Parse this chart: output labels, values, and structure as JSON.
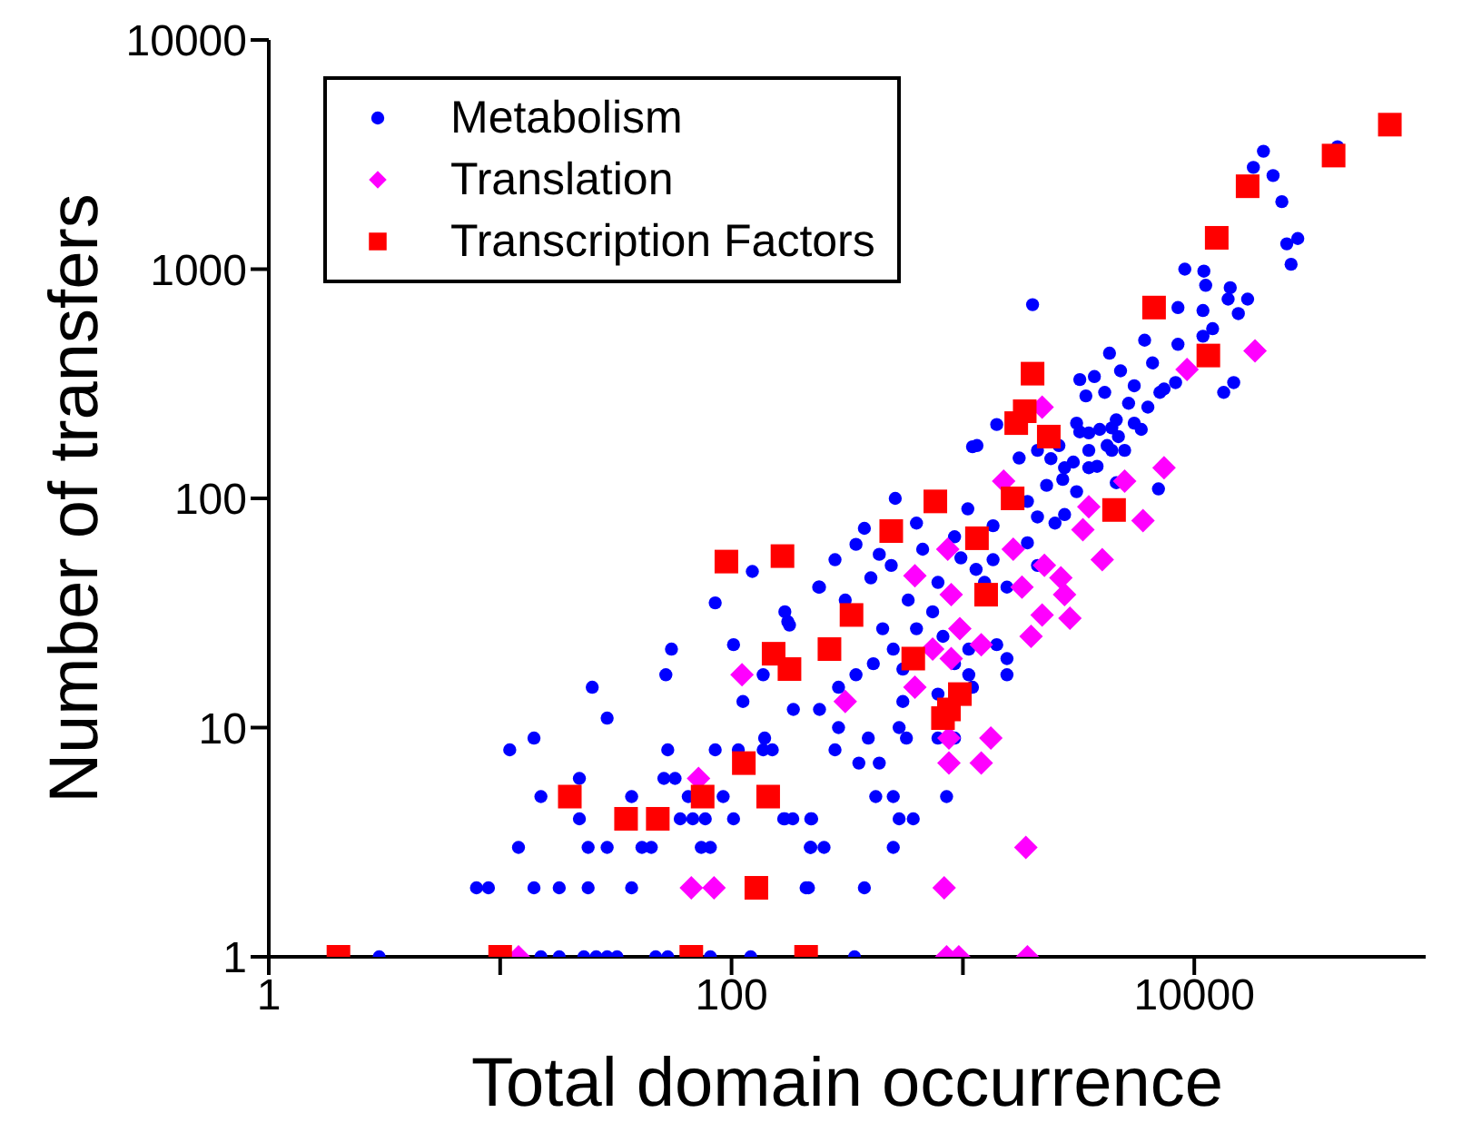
{
  "chart_data": {
    "type": "scatter",
    "xlabel": "Total domain occurrence",
    "ylabel": "Number of transfers",
    "log": "xy",
    "legend": "top left",
    "xlim": [
      1,
      100000
    ],
    "xticks": [
      1,
      {
        "value": 10,
        "label": null
      },
      100,
      {
        "value": 1000,
        "label": null
      },
      10000
    ],
    "ylim": [
      1,
      10000
    ],
    "yticks": [
      1,
      10,
      100,
      1000,
      10000
    ],
    "series": [
      {
        "name": "Metabolism",
        "color": "#0000ff",
        "marker": "circle",
        "x": [
          3,
          15,
          18,
          23,
          26,
          29,
          32,
          47,
          53,
          81,
          121,
          7.9,
          8.9,
          14,
          18,
          24,
          37,
          215,
          12,
          24,
          29,
          41,
          45,
          74,
          81,
          219,
          251,
          22,
          60,
          68,
          77,
          102,
          168,
          184,
          222,
          15,
          37,
          65,
          92,
          22,
          51,
          57,
          11,
          53,
          85,
          107,
          14,
          139,
          29,
          25,
          52,
          55,
          85,
          102,
          123,
          112,
          137,
          175,
          238,
          1100,
          510,
          375,
          630,
          280,
          240,
          170,
          178,
          310,
          400,
          490,
          580,
          450,
          500,
          550,
          410,
          345,
          290,
          240,
          185,
          290,
          390,
          280,
          570,
          355,
          435,
          420,
          500,
          850,
          170,
          220,
          530,
          610,
          220,
          500,
          210,
          375,
          340,
          780,
          740,
          630,
          820,
          1060,
          920,
          1060,
          1100,
          780,
          550,
          530,
          780,
          920,
          1400,
          1550,
          1550,
          980,
          1140,
          1350,
          1240,
          1550,
          1900,
          2100,
          2100,
          2500,
          1900,
          2750,
          3100,
          3500,
          2750,
          2300,
          1750,
          2100,
          2600,
          3500,
          4400,
          5500,
          3100,
          4400,
          1400,
          1050,
          1350,
          920,
          670,
          435,
          345,
          150,
          137,
          41600,
          19900,
          18000,
          21900,
          23900,
          25100,
          28000,
          26200,
          9100,
          11000,
          11200,
          14300,
          17000,
          10900,
          8500,
          15500,
          14000,
          12000,
          10900,
          8500,
          6100,
          4300,
          4800,
          6600,
          8300,
          7400,
          14800,
          13400,
          2000,
          3200,
          3700,
          3400,
          4100,
          5500,
          5200,
          6300,
          7100,
          5900,
          4600,
          3900,
          3200,
          4700,
          4200,
          5000,
          3500,
          3000,
          3800,
          2700,
          4600,
          2400,
          1150,
          7000
        ],
        "values": [
          1,
          1,
          1,
          1,
          1,
          1,
          1,
          1,
          1,
          1,
          1,
          2,
          2,
          2,
          2,
          2,
          2,
          2,
          3,
          3,
          3,
          3,
          3,
          3,
          3,
          3,
          3,
          4,
          4,
          4,
          4,
          4,
          4,
          4,
          4,
          5,
          5,
          5,
          5,
          6,
          6,
          6,
          8,
          8,
          8,
          8,
          9,
          9,
          11,
          15,
          17,
          22,
          35,
          23,
          48,
          13,
          17,
          29,
          41,
          168,
          100,
          74,
          78,
          54,
          41,
          32,
          28,
          36,
          45,
          51,
          36,
          27,
          22,
          18,
          19,
          17,
          15,
          12,
          12,
          10,
          9,
          8,
          9,
          7,
          7,
          5,
          5,
          5,
          4,
          4,
          4,
          4,
          3,
          3,
          2,
          2,
          1,
          43,
          32,
          27,
          25,
          22,
          19,
          17,
          15,
          14,
          13,
          10,
          9,
          9,
          23,
          20,
          17,
          55,
          49,
          54,
          43,
          41,
          64,
          51,
          83,
          78,
          97,
          85,
          107,
          136,
          136,
          114,
          150,
          162,
          170,
          193,
          203,
          213,
          213,
          162,
          210,
          90,
          76,
          68,
          60,
          57,
          63,
          8,
          8,
          3420,
          3270,
          2780,
          2560,
          1970,
          1290,
          1360,
          1050,
          1000,
          980,
          850,
          830,
          740,
          660,
          680,
          640,
          740,
          550,
          510,
          470,
          490,
          430,
          360,
          390,
          320,
          300,
          320,
          290,
          700,
          330,
          340,
          280,
          290,
          310,
          260,
          250,
          290,
          200,
          220,
          200,
          195,
          186,
          170,
          162,
          162,
          144,
          138,
          121,
          117,
          149,
          170,
          110
        ]
      },
      {
        "name": "Translation",
        "color": "#ff00ff",
        "marker": "diamond",
        "x": [
          12,
          850,
          960,
          1900,
          830,
          1870,
          67,
          84,
          72,
          111,
          1320,
          1200,
          870,
          870,
          620,
          310,
          890,
          740,
          1200,
          970,
          1970,
          2200,
          2900,
          2750,
          2650,
          2250,
          1800,
          890,
          620,
          860,
          1650,
          4000,
          3300,
          3500,
          5000,
          6000,
          1500,
          7400,
          18300,
          9300,
          2200
        ],
        "values": [
          1,
          1,
          1,
          1,
          2,
          3,
          2,
          2,
          6,
          17,
          9,
          7,
          7,
          9,
          15,
          13,
          20,
          22,
          23,
          27,
          25,
          31,
          30,
          38,
          45,
          51,
          41,
          38,
          46,
          60,
          60,
          54,
          73,
          92,
          119,
          80,
          119,
          136,
          440,
          365,
          250
        ]
      },
      {
        "name": "Transcription Factors",
        "color": "#ff0000",
        "marker": "square",
        "x": [
          2,
          10,
          67,
          210,
          20,
          35,
          48,
          75,
          113,
          144,
          128,
          95,
          166,
          152,
          178,
          265,
          1700,
          2350,
          760,
          490,
          1150,
          1640,
          4500,
          330,
          610,
          1260,
          970,
          870,
          820,
          70000,
          40000,
          17000,
          12500,
          6700,
          11500,
          2000,
          1850
        ],
        "values": [
          1,
          1,
          1,
          1,
          5,
          4,
          4,
          5,
          7,
          5,
          2,
          53,
          56,
          21,
          18,
          22,
          213,
          186,
          97,
          72,
          67,
          100,
          89,
          31,
          20,
          38,
          14,
          12,
          11,
          4270,
          3130,
          2300,
          1370,
          680,
          420,
          350,
          240
        ]
      }
    ]
  }
}
